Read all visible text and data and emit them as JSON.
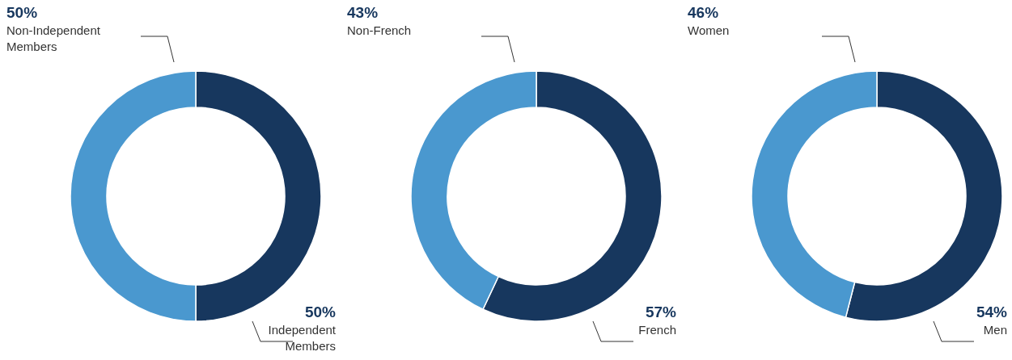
{
  "chart_data": [
    {
      "type": "donut",
      "categories": [
        "Independent Members",
        "Non-Independent Members"
      ],
      "values": [
        50,
        50
      ],
      "colors": [
        "#17375e",
        "#4a98cf"
      ],
      "value_labels": [
        "50%",
        "50%"
      ]
    },
    {
      "type": "donut",
      "categories": [
        "French",
        "Non-French"
      ],
      "values": [
        57,
        43
      ],
      "colors": [
        "#17375e",
        "#4a98cf"
      ],
      "value_labels": [
        "57%",
        "43%"
      ]
    },
    {
      "type": "donut",
      "categories": [
        "Men",
        "Women"
      ],
      "values": [
        54,
        46
      ],
      "colors": [
        "#17375e",
        "#4a98cf"
      ],
      "value_labels": [
        "54%",
        "46%"
      ]
    }
  ]
}
